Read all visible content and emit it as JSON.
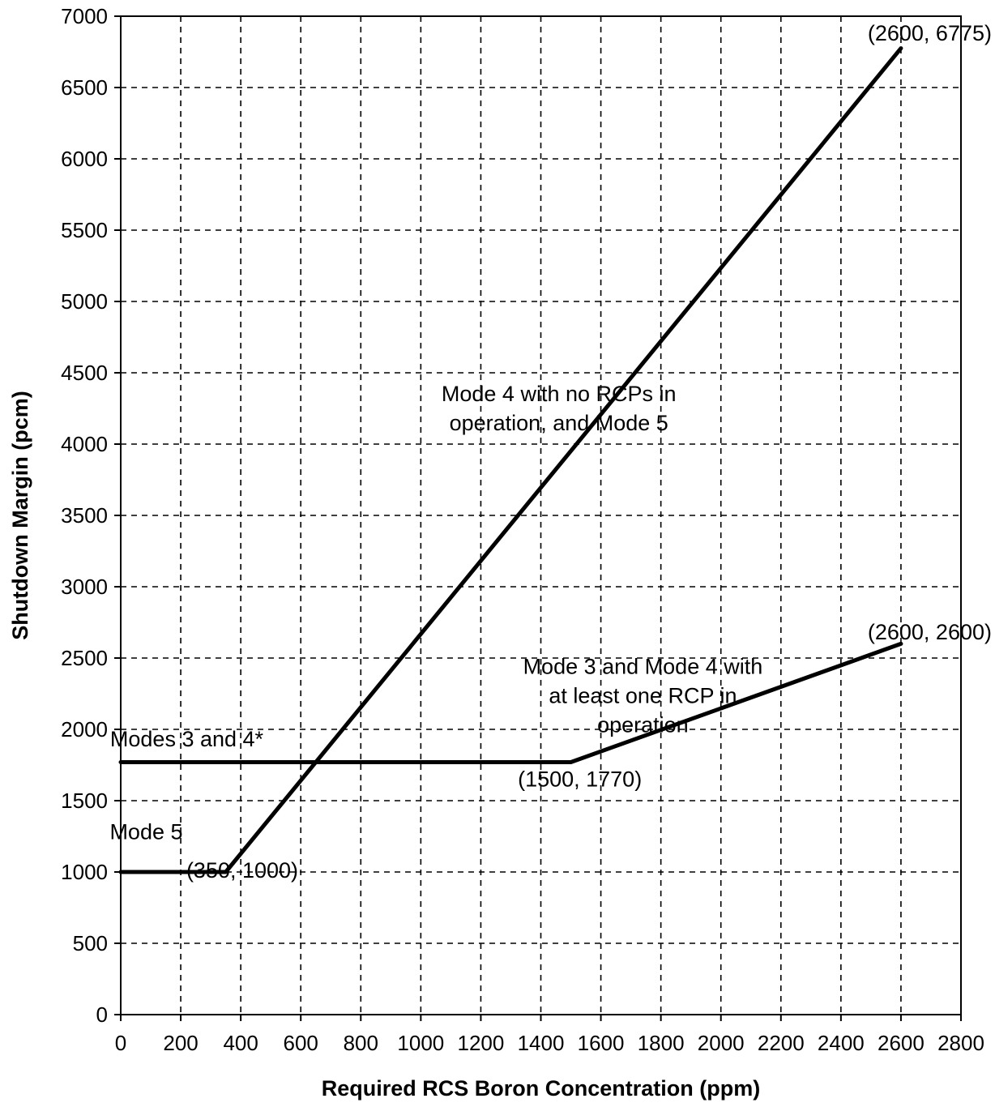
{
  "chart_data": {
    "type": "line",
    "xlabel": "Required RCS Boron Concentration (ppm)",
    "ylabel": "Shutdown Margin (pcm)",
    "xlim": [
      0,
      2800
    ],
    "ylim": [
      0,
      7000
    ],
    "x_ticks": [
      0,
      200,
      400,
      600,
      800,
      1000,
      1200,
      1400,
      1600,
      1800,
      2000,
      2200,
      2400,
      2600,
      2800
    ],
    "y_ticks": [
      0,
      500,
      1000,
      1500,
      2000,
      2500,
      3000,
      3500,
      4000,
      4500,
      5000,
      5500,
      6000,
      6500,
      7000
    ],
    "x_tick_labels": [
      "0",
      "200",
      "400",
      "600",
      "800",
      "1000",
      "1200",
      "1400",
      "1600",
      "1800",
      "2000",
      "2200",
      "2400",
      "2600",
      "2800"
    ],
    "y_tick_labels": [
      "0",
      "500",
      "1000",
      "1500",
      "2000",
      "2500",
      "3000",
      "3500",
      "4000",
      "4500",
      "5000",
      "5500",
      "6000",
      "6500",
      "7000"
    ],
    "grid": true,
    "series": [
      {
        "points": [
          [
            0,
            1000
          ],
          [
            350,
            1000
          ],
          [
            2600,
            6775
          ]
        ]
      },
      {
        "points": [
          [
            0,
            1770
          ],
          [
            1500,
            1770
          ],
          [
            2600,
            2600
          ]
        ]
      }
    ],
    "annotations": [
      {
        "lines": [
          "Mode 4 with no RCPs in",
          "operation, and Mode 5"
        ],
        "x": 1460,
        "y": 4300
      },
      {
        "lines": [
          "Mode 3 and Mode 4 with",
          "at least one RCP in",
          "operation"
        ],
        "x": 1740,
        "y": 2390
      },
      {
        "lines": [
          "Modes 3 and 4*"
        ],
        "x": 220,
        "y": 1880
      },
      {
        "lines": [
          "Mode 5"
        ],
        "x": 85,
        "y": 1230
      },
      {
        "lines": [
          "(2600, 6775)"
        ],
        "x": 2800,
        "y": 6830
      },
      {
        "lines": [
          "(2600, 2600)"
        ],
        "x": 2790,
        "y": 2630
      },
      {
        "lines": [
          "(1500, 1770)"
        ],
        "x": 1530,
        "y": 1600
      },
      {
        "lines": [
          "(350, 1000)"
        ],
        "x": 405,
        "y": 960
      }
    ]
  }
}
